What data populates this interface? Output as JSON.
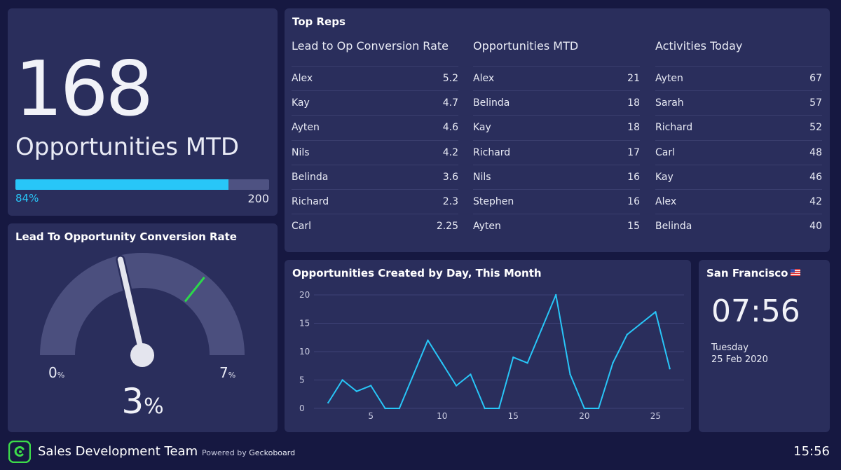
{
  "opportunities": {
    "number": "168",
    "label": "Opportunities MTD",
    "progress_fraction": 0.84,
    "progress_label": "84%",
    "goal": "200",
    "colors": {
      "fill": "#28c6f8",
      "track": "#4e5282"
    }
  },
  "gauge": {
    "title": "Lead To Opportunity Conversion Rate",
    "min": "0",
    "max": "7",
    "unit": "%",
    "value": "3",
    "value_number": 3,
    "min_number": 0,
    "max_number": 7,
    "target_number": 5,
    "colors": {
      "arc": "#4b4f7e",
      "needle": "#e4e5ee",
      "target": "#2bd94a"
    }
  },
  "top_reps": {
    "title": "Top Reps",
    "columns": [
      {
        "header": "Lead to Op Conversion Rate",
        "rows": [
          {
            "name": "Alex",
            "value": "5.2"
          },
          {
            "name": "Kay",
            "value": "4.7"
          },
          {
            "name": "Ayten",
            "value": "4.6"
          },
          {
            "name": "Nils",
            "value": "4.2"
          },
          {
            "name": "Belinda",
            "value": "3.6"
          },
          {
            "name": "Richard",
            "value": "2.3"
          },
          {
            "name": "Carl",
            "value": "2.25"
          }
        ]
      },
      {
        "header": "Opportunities MTD",
        "rows": [
          {
            "name": "Alex",
            "value": "21"
          },
          {
            "name": "Belinda",
            "value": "18"
          },
          {
            "name": "Kay",
            "value": "18"
          },
          {
            "name": "Richard",
            "value": "17"
          },
          {
            "name": "Nils",
            "value": "16"
          },
          {
            "name": "Stephen",
            "value": "16"
          },
          {
            "name": "Ayten",
            "value": "15"
          }
        ]
      },
      {
        "header": "Activities Today",
        "rows": [
          {
            "name": "Ayten",
            "value": "67"
          },
          {
            "name": "Sarah",
            "value": "57"
          },
          {
            "name": "Richard",
            "value": "52"
          },
          {
            "name": "Carl",
            "value": "48"
          },
          {
            "name": "Kay",
            "value": "46"
          },
          {
            "name": "Alex",
            "value": "42"
          },
          {
            "name": "Belinda",
            "value": "40"
          }
        ]
      }
    ]
  },
  "line_chart": {
    "title": "Opportunities Created by Day, This Month"
  },
  "chart_data": {
    "type": "line",
    "title": "Opportunities Created by Day, This Month",
    "xlabel": "",
    "ylabel": "",
    "x": [
      2,
      3,
      4,
      5,
      6,
      7,
      8,
      9,
      10,
      11,
      12,
      13,
      14,
      15,
      16,
      17,
      18,
      19,
      20,
      21,
      22,
      23,
      24,
      25,
      26
    ],
    "series": [
      {
        "values": [
          1,
          5,
          3,
          4,
          0,
          0,
          6,
          12,
          8,
          4,
          6,
          0,
          0,
          9,
          8,
          14,
          20,
          6,
          0,
          0,
          8,
          13,
          15,
          17,
          7
        ]
      }
    ],
    "xlim": [
      1,
      27
    ],
    "ylim": [
      0,
      20
    ],
    "x_ticks": [
      5,
      10,
      15,
      20,
      25
    ],
    "y_ticks": [
      0,
      5,
      10,
      15,
      20
    ],
    "grid": true,
    "line_color": "#28c6f8"
  },
  "clock": {
    "city": "San Francisco",
    "time": "07:56",
    "day": "Tuesday",
    "date": "25 Feb 2020"
  },
  "footer": {
    "team_name": "Sales Development Team",
    "powered_prefix": "Powered by ",
    "powered_brand": "Geckoboard",
    "time": "15:56",
    "logo_color": "#3ddc4a"
  }
}
